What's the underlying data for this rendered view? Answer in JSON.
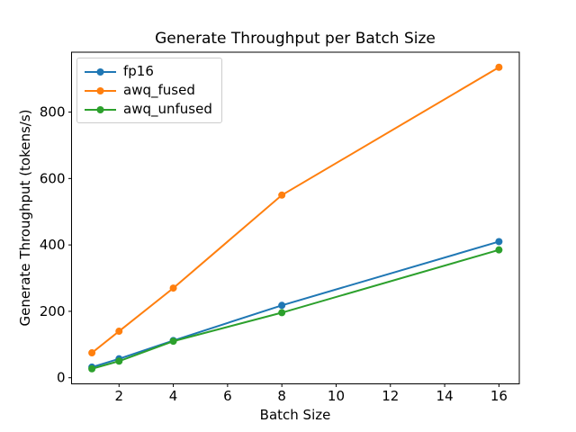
{
  "figure": {
    "background": "#ffffff",
    "text_color": "#000000",
    "spine_color": "#000000",
    "legend_border_color": "#cccccc"
  },
  "chart_data": {
    "type": "line",
    "title": "Generate Throughput per Batch Size",
    "xlabel": "Batch Size",
    "ylabel": "Generate Throughput (tokens/s)",
    "x": [
      1,
      2,
      4,
      8,
      16
    ],
    "series": [
      {
        "name": "fp16",
        "color": "#1f77b4",
        "marker": "circle",
        "values": [
          32,
          57,
          112,
          218,
          410
        ]
      },
      {
        "name": "awq_fused",
        "color": "#ff7f0e",
        "marker": "circle",
        "values": [
          75,
          140,
          270,
          550,
          935
        ]
      },
      {
        "name": "awq_unfused",
        "color": "#2ca02c",
        "marker": "circle",
        "values": [
          27,
          50,
          110,
          196,
          385
        ]
      }
    ],
    "xlim": [
      0.25,
      16.75
    ],
    "ylim": [
      -18.4,
      980.4
    ],
    "xticks": {
      "values": [
        2,
        4,
        6,
        8,
        10,
        12,
        14,
        16
      ],
      "labels": [
        "2",
        "4",
        "6",
        "8",
        "10",
        "12",
        "14",
        "16"
      ]
    },
    "yticks": {
      "values": [
        0,
        200,
        400,
        600,
        800
      ],
      "labels": [
        "0",
        "200",
        "400",
        "600",
        "800"
      ]
    },
    "grid": false,
    "legend_position": "upper left",
    "line_width": 2,
    "marker_radius": 4
  }
}
